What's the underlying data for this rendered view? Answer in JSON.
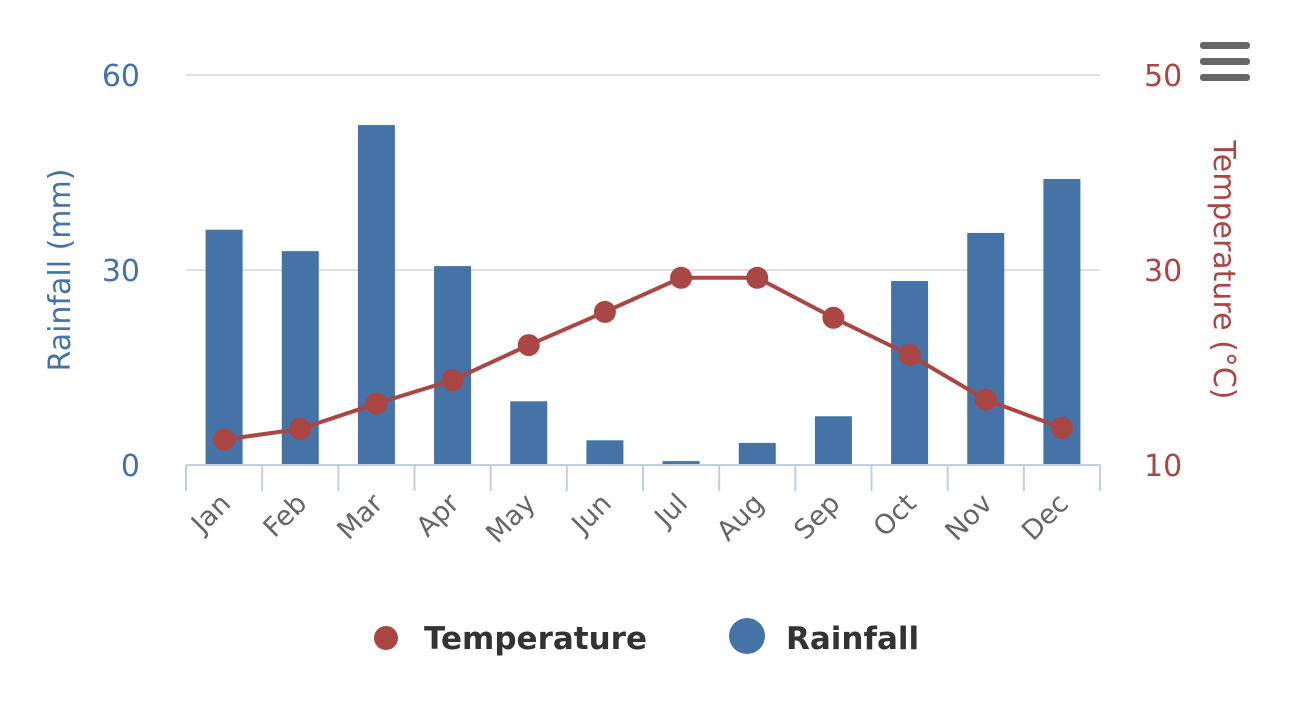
{
  "chart_data": {
    "type": "bar+line",
    "categories": [
      "Jan",
      "Feb",
      "Mar",
      "Apr",
      "May",
      "Jun",
      "Jul",
      "Aug",
      "Sep",
      "Oct",
      "Nov",
      "Dec"
    ],
    "series": [
      {
        "name": "Rainfall",
        "type": "bar",
        "axis": "left",
        "color": "#4572a7",
        "values": [
          36.2,
          32.9,
          52.3,
          30.6,
          9.8,
          3.8,
          0.6,
          3.4,
          7.5,
          28.3,
          35.7,
          44.0
        ]
      },
      {
        "name": "Temperature",
        "type": "line",
        "axis": "right",
        "color": "#aa4643",
        "values": [
          12.6,
          13.7,
          16.3,
          18.7,
          22.3,
          25.7,
          29.2,
          29.2,
          25.1,
          21.3,
          16.7,
          13.8
        ]
      }
    ],
    "y_left": {
      "label": "Rainfall (mm)",
      "range": [
        0,
        60
      ],
      "ticks": [
        "0",
        "30",
        "60"
      ],
      "color": "#4572a7"
    },
    "y_right": {
      "label": "Temperature (°C)",
      "range": [
        10,
        50
      ],
      "ticks": [
        "10",
        "30",
        "50"
      ],
      "color": "#aa4643"
    },
    "grid": true,
    "legend": {
      "placement": "bottom-center",
      "items": [
        "Temperature",
        "Rainfall"
      ]
    }
  },
  "menu_icon": "hamburger-menu-icon"
}
